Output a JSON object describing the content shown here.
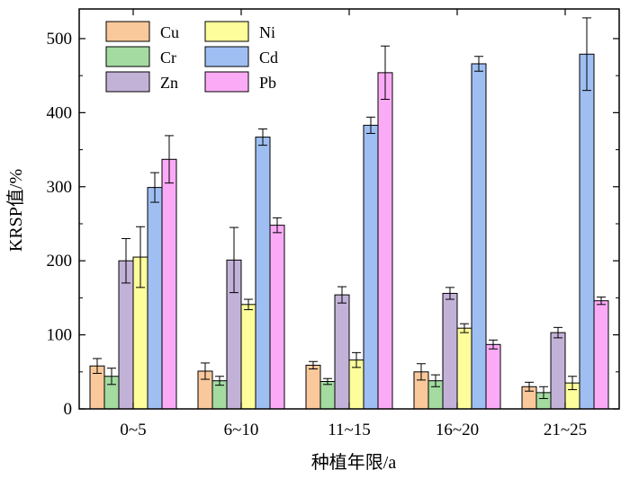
{
  "chart_data": {
    "type": "bar",
    "title": "",
    "xlabel": "种植年限/a",
    "ylabel": "KRSP值/%",
    "ylim": [
      0,
      540
    ],
    "yticks": [
      0,
      100,
      200,
      300,
      400,
      500
    ],
    "grid": false,
    "legend_position": "top-left",
    "legend_columns": 2,
    "categories": [
      "0~5",
      "6~10",
      "11~15",
      "16~20",
      "21~25"
    ],
    "series": [
      {
        "name": "Cu",
        "color": "#f9c89b",
        "values": [
          58,
          51,
          59,
          50,
          30
        ],
        "errors": [
          10,
          11,
          5,
          11,
          6
        ]
      },
      {
        "name": "Cr",
        "color": "#a3dba0",
        "values": [
          44,
          38,
          37,
          38,
          22
        ],
        "errors": [
          11,
          6,
          4,
          8,
          8
        ]
      },
      {
        "name": "Zn",
        "color": "#c3b2d8",
        "values": [
          200,
          201,
          154,
          156,
          103
        ],
        "errors": [
          30,
          44,
          11,
          8,
          7
        ]
      },
      {
        "name": "Ni",
        "color": "#fdfd9b",
        "values": [
          205,
          141,
          66,
          109,
          35
        ],
        "errors": [
          41,
          7,
          10,
          6,
          9
        ]
      },
      {
        "name": "Cd",
        "color": "#9fbff3",
        "values": [
          299,
          367,
          383,
          466,
          479
        ],
        "errors": [
          20,
          11,
          11,
          10,
          49
        ]
      },
      {
        "name": "Pb",
        "color": "#fbabf6",
        "values": [
          337,
          248,
          454,
          87,
          146
        ],
        "errors": [
          32,
          10,
          36,
          6,
          5
        ]
      }
    ]
  }
}
